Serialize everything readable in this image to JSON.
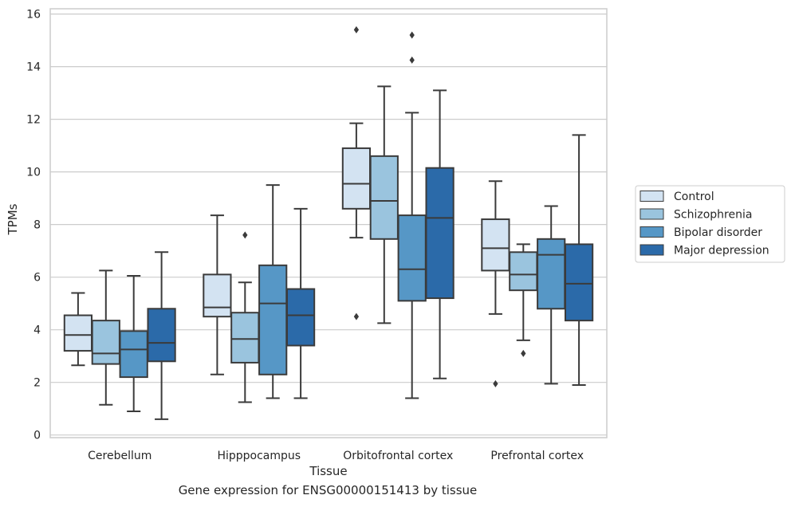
{
  "chart_data": {
    "type": "box",
    "caption": "Gene expression for ENSG00000151413 by tissue",
    "xlabel": "Tissue",
    "ylabel": "TPMs",
    "ylim": [
      -0.1,
      16.2
    ],
    "yticks": [
      0,
      2,
      4,
      6,
      8,
      10,
      12,
      14,
      16
    ],
    "grid": "horizontal",
    "legend_position": "right",
    "categories": [
      "Cerebellum",
      "Hipppocampus",
      "Orbitofrontal cortex",
      "Prefrontal cortex"
    ],
    "series": [
      {
        "name": "Control",
        "color": "#d3e3f2",
        "boxes": [
          {
            "whislo": 2.65,
            "q1": 3.2,
            "med": 3.8,
            "q3": 4.55,
            "whishi": 5.4,
            "fliers": []
          },
          {
            "whislo": 2.3,
            "q1": 4.5,
            "med": 4.85,
            "q3": 6.1,
            "whishi": 8.35,
            "fliers": []
          },
          {
            "whislo": 7.5,
            "q1": 8.6,
            "med": 9.55,
            "q3": 10.9,
            "whishi": 11.85,
            "fliers": [
              15.4,
              4.5
            ]
          },
          {
            "whislo": 4.6,
            "q1": 6.25,
            "med": 7.1,
            "q3": 8.2,
            "whishi": 9.65,
            "fliers": [
              1.95
            ]
          }
        ]
      },
      {
        "name": "Schizophrenia",
        "color": "#9ac4de",
        "boxes": [
          {
            "whislo": 1.15,
            "q1": 2.7,
            "med": 3.1,
            "q3": 4.35,
            "whishi": 6.25,
            "fliers": []
          },
          {
            "whislo": 1.25,
            "q1": 2.75,
            "med": 3.65,
            "q3": 4.65,
            "whishi": 5.8,
            "fliers": [
              7.6
            ]
          },
          {
            "whislo": 4.25,
            "q1": 7.45,
            "med": 8.9,
            "q3": 10.6,
            "whishi": 13.25,
            "fliers": []
          },
          {
            "whislo": 3.6,
            "q1": 5.5,
            "med": 6.1,
            "q3": 6.95,
            "whishi": 7.25,
            "fliers": [
              3.1
            ]
          }
        ]
      },
      {
        "name": "Bipolar disorder",
        "color": "#5697c6",
        "boxes": [
          {
            "whislo": 0.9,
            "q1": 2.2,
            "med": 3.25,
            "q3": 3.95,
            "whishi": 6.05,
            "fliers": []
          },
          {
            "whislo": 1.4,
            "q1": 2.3,
            "med": 5.0,
            "q3": 6.45,
            "whishi": 9.5,
            "fliers": []
          },
          {
            "whislo": 1.4,
            "q1": 5.1,
            "med": 6.3,
            "q3": 8.35,
            "whishi": 12.25,
            "fliers": [
              15.2,
              14.25
            ]
          },
          {
            "whislo": 1.95,
            "q1": 4.8,
            "med": 6.85,
            "q3": 7.45,
            "whishi": 8.7,
            "fliers": []
          }
        ]
      },
      {
        "name": "Major depression",
        "color": "#2b6aa9",
        "boxes": [
          {
            "whislo": 0.6,
            "q1": 2.8,
            "med": 3.5,
            "q3": 4.8,
            "whishi": 6.95,
            "fliers": []
          },
          {
            "whislo": 1.4,
            "q1": 3.4,
            "med": 4.55,
            "q3": 5.55,
            "whishi": 8.6,
            "fliers": []
          },
          {
            "whislo": 2.15,
            "q1": 5.2,
            "med": 8.25,
            "q3": 10.15,
            "whishi": 13.1,
            "fliers": []
          },
          {
            "whislo": 1.9,
            "q1": 4.35,
            "med": 5.75,
            "q3": 7.25,
            "whishi": 11.4,
            "fliers": []
          }
        ]
      }
    ]
  }
}
